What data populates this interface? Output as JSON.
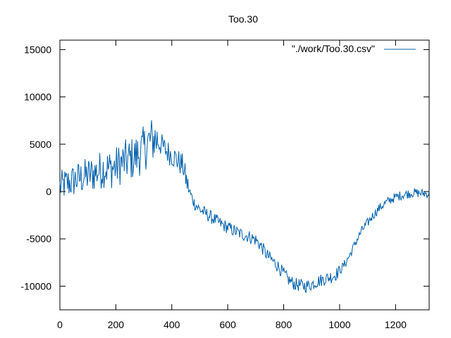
{
  "chart_data": {
    "type": "line",
    "title": "Too.30",
    "xlabel": "",
    "ylabel": "",
    "xlim": [
      0,
      1320
    ],
    "ylim": [
      -12500,
      16000
    ],
    "x_ticks": [
      0,
      200,
      400,
      600,
      800,
      1000,
      1200
    ],
    "x_tick_labels": [
      "0",
      "200",
      "400",
      "600",
      "800",
      "1000",
      "1200"
    ],
    "y_ticks": [
      -10000,
      -5000,
      0,
      5000,
      10000,
      15000
    ],
    "y_tick_labels": [
      "-10000",
      "-5000",
      "0",
      "5000",
      "10000",
      "15000"
    ],
    "grid": false,
    "legend_position": "top-right",
    "series": [
      {
        "name": "\"./work/Too.30.csv\"",
        "color": "#0060ad",
        "x": [
          0,
          20,
          40,
          60,
          80,
          100,
          120,
          140,
          160,
          180,
          200,
          220,
          240,
          260,
          280,
          300,
          320,
          340,
          360,
          380,
          400,
          420,
          440,
          460,
          480,
          500,
          520,
          540,
          560,
          580,
          600,
          620,
          640,
          660,
          680,
          700,
          720,
          740,
          760,
          780,
          800,
          820,
          840,
          860,
          880,
          900,
          920,
          940,
          960,
          980,
          1000,
          1020,
          1040,
          1060,
          1080,
          1100,
          1120,
          1140,
          1160,
          1180,
          1200,
          1220,
          1240,
          1260,
          1280,
          1300,
          1320
        ],
        "y": [
          500,
          800,
          1000,
          1300,
          1500,
          1700,
          1900,
          2200,
          2500,
          2400,
          2600,
          3000,
          3300,
          3500,
          3900,
          4500,
          5300,
          5600,
          5000,
          4300,
          3900,
          3300,
          2700,
          200,
          -1200,
          -1900,
          -2300,
          -2700,
          -3100,
          -3500,
          -3800,
          -4100,
          -4400,
          -4600,
          -4800,
          -5100,
          -5800,
          -6700,
          -7300,
          -7900,
          -8700,
          -9400,
          -9800,
          -9900,
          -10000,
          -9800,
          -9500,
          -9300,
          -9100,
          -8900,
          -8400,
          -7600,
          -6500,
          -5200,
          -4100,
          -3300,
          -2500,
          -1800,
          -1300,
          -900,
          -600,
          -400,
          -250,
          -150,
          -150,
          -200,
          -250
        ]
      }
    ]
  }
}
